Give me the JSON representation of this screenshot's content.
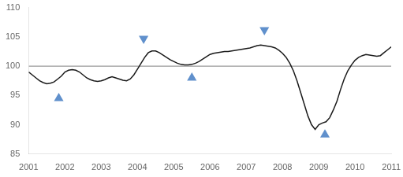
{
  "chart_data": {
    "type": "line",
    "xlim": [
      2001,
      2011
    ],
    "ylim": [
      85,
      110
    ],
    "xticks": [
      2001,
      2002,
      2003,
      2004,
      2005,
      2006,
      2007,
      2008,
      2009,
      2010,
      2011
    ],
    "yticks": [
      85,
      90,
      95,
      100,
      105,
      110
    ],
    "grid": false,
    "series": [
      {
        "type": "line",
        "color": "#999999",
        "line_style": "solid",
        "x": [
          2001,
          2011
        ],
        "values": [
          100,
          100
        ]
      },
      {
        "type": "line",
        "color": "#1a1a1a",
        "line_style": "solid",
        "x": [
          2001.0,
          2001.1,
          2001.2,
          2001.3,
          2001.4,
          2001.5,
          2001.6,
          2001.7,
          2001.8,
          2001.9,
          2002.0,
          2002.1,
          2002.2,
          2002.3,
          2002.4,
          2002.5,
          2002.6,
          2002.7,
          2002.8,
          2002.9,
          2003.0,
          2003.1,
          2003.2,
          2003.3,
          2003.4,
          2003.5,
          2003.6,
          2003.7,
          2003.8,
          2003.9,
          2004.0,
          2004.1,
          2004.2,
          2004.3,
          2004.4,
          2004.5,
          2004.6,
          2004.7,
          2004.8,
          2004.9,
          2005.0,
          2005.1,
          2005.2,
          2005.3,
          2005.4,
          2005.5,
          2005.6,
          2005.7,
          2005.8,
          2005.9,
          2006.0,
          2006.1,
          2006.2,
          2006.3,
          2006.4,
          2006.5,
          2006.6,
          2006.7,
          2006.8,
          2006.9,
          2007.0,
          2007.1,
          2007.2,
          2007.3,
          2007.4,
          2007.5,
          2007.6,
          2007.7,
          2007.8,
          2007.9,
          2008.0,
          2008.1,
          2008.2,
          2008.3,
          2008.4,
          2008.5,
          2008.6,
          2008.7,
          2008.8,
          2008.9,
          2009.0,
          2009.1,
          2009.2,
          2009.3,
          2009.4,
          2009.5,
          2009.6,
          2009.7,
          2009.8,
          2009.9,
          2010.0,
          2010.1,
          2010.2,
          2010.3,
          2010.4,
          2010.5,
          2010.6,
          2010.7,
          2010.8,
          2010.9,
          2011.0
        ],
        "values": [
          99.0,
          98.5,
          98.0,
          97.5,
          97.2,
          97.0,
          97.1,
          97.3,
          97.8,
          98.3,
          99.0,
          99.3,
          99.4,
          99.3,
          99.0,
          98.5,
          98.0,
          97.7,
          97.5,
          97.4,
          97.5,
          97.7,
          98.0,
          98.2,
          98.0,
          97.8,
          97.6,
          97.5,
          97.8,
          98.5,
          99.5,
          100.5,
          101.5,
          102.3,
          102.6,
          102.6,
          102.3,
          101.9,
          101.5,
          101.1,
          100.8,
          100.5,
          100.3,
          100.2,
          100.2,
          100.3,
          100.5,
          100.8,
          101.2,
          101.6,
          102.0,
          102.2,
          102.3,
          102.4,
          102.5,
          102.5,
          102.6,
          102.7,
          102.8,
          102.9,
          103.0,
          103.1,
          103.3,
          103.5,
          103.6,
          103.5,
          103.4,
          103.3,
          103.1,
          102.7,
          102.2,
          101.5,
          100.5,
          99.2,
          97.5,
          95.5,
          93.5,
          91.5,
          90.0,
          89.2,
          90.0,
          90.3,
          90.5,
          91.2,
          92.5,
          94.0,
          96.0,
          97.8,
          99.2,
          100.2,
          101.0,
          101.5,
          101.8,
          102.0,
          101.9,
          101.8,
          101.7,
          101.8,
          102.3,
          102.8,
          103.3
        ]
      },
      {
        "type": "scatter",
        "color": "#6090cc",
        "marker": "triangle-up",
        "x": [
          2001.83,
          2005.5,
          2009.17
        ],
        "values": [
          94.5,
          98.0,
          88.3
        ]
      },
      {
        "type": "scatter",
        "color": "#6090cc",
        "marker": "triangle-down",
        "x": [
          2004.17,
          2007.5
        ],
        "values": [
          104.7,
          106.2
        ]
      }
    ]
  }
}
